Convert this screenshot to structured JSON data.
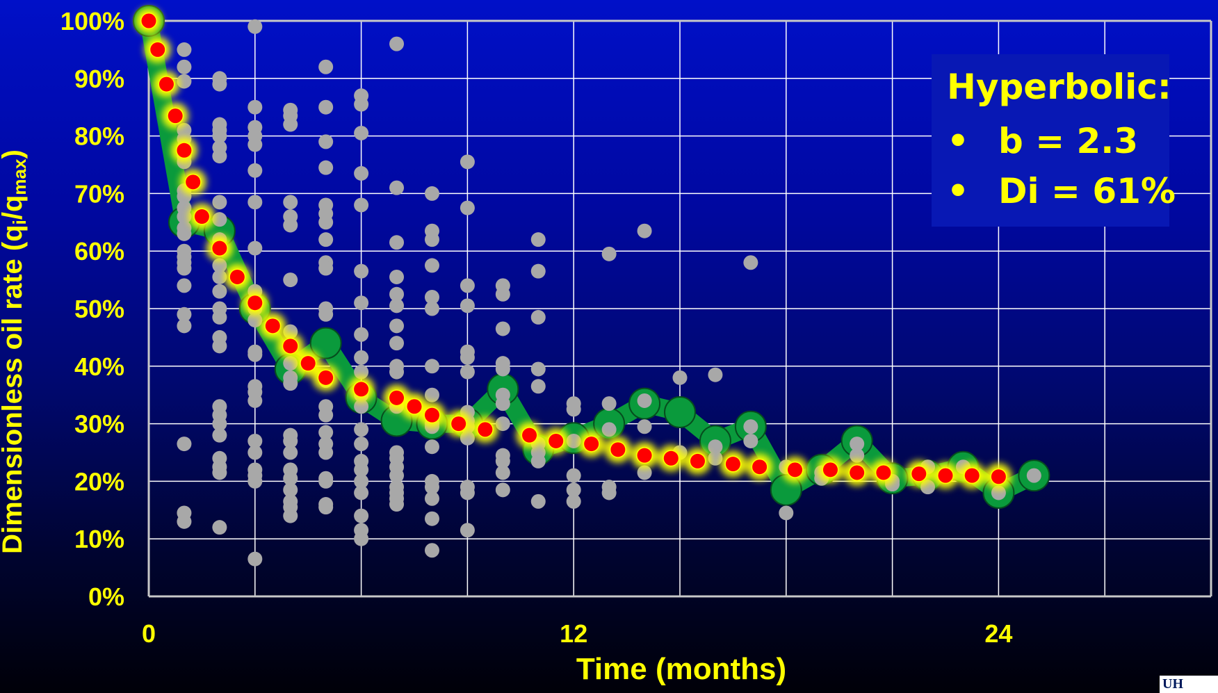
{
  "colors": {
    "grid": "#ffffff",
    "label": "#ffff00",
    "scatter": "#a8a8a8",
    "average": "#0a9a3c",
    "fit_glow": "#ffff00",
    "fit_dot": "#ff0000"
  },
  "annotation": {
    "title": "Hyperbolic:",
    "bullet": "•",
    "items": [
      "b = 2.3",
      "Di = 61%"
    ]
  },
  "logo": {
    "text": "UH"
  },
  "chart_data": {
    "type": "scatter",
    "title": "",
    "xlabel": "Time (months)",
    "ylabel": "Dimensionless oil rate (qi/qmax)",
    "ylabel_parts": {
      "main": "Dimensionless oil rate (q",
      "sub1": "i",
      "mid": "/q",
      "sub2": "max",
      "end": ")"
    },
    "xlim": [
      0,
      30
    ],
    "ylim": [
      0,
      1
    ],
    "xticks": [
      0,
      12,
      24
    ],
    "xtick_labels": [
      "0",
      "12",
      "24"
    ],
    "yticks": [
      0,
      0.1,
      0.2,
      0.3,
      0.4,
      0.5,
      0.6,
      0.7,
      0.8,
      0.9,
      1.0
    ],
    "ytick_labels": [
      "0%",
      "10%",
      "20%",
      "30%",
      "40%",
      "50%",
      "60%",
      "70%",
      "80%",
      "90%",
      "100%"
    ],
    "grid": true,
    "series": [
      {
        "kind": "scatter",
        "columns": [
          {
            "x": 0,
            "y": [
              1.0
            ]
          },
          {
            "x": 1,
            "y": [
              0.95,
              0.92,
              0.895,
              0.81,
              0.795,
              0.78,
              0.765,
              0.755,
              0.705,
              0.695,
              0.675,
              0.66,
              0.64,
              0.63,
              0.6,
              0.59,
              0.58,
              0.57,
              0.54,
              0.49,
              0.47,
              0.265,
              0.145,
              0.13
            ]
          },
          {
            "x": 2,
            "y": [
              0.9,
              0.89,
              0.82,
              0.81,
              0.8,
              0.78,
              0.765,
              0.685,
              0.655,
              0.62,
              0.575,
              0.555,
              0.53,
              0.5,
              0.485,
              0.45,
              0.435,
              0.33,
              0.315,
              0.3,
              0.28,
              0.24,
              0.225,
              0.215,
              0.12
            ]
          },
          {
            "x": 3,
            "y": [
              0.99,
              0.85,
              0.815,
              0.8,
              0.785,
              0.74,
              0.685,
              0.605,
              0.53,
              0.515,
              0.5,
              0.48,
              0.425,
              0.42,
              0.365,
              0.355,
              0.34,
              0.27,
              0.25,
              0.22,
              0.21,
              0.2,
              0.065
            ]
          },
          {
            "x": 4,
            "y": [
              0.845,
              0.835,
              0.82,
              0.685,
              0.66,
              0.645,
              0.55,
              0.46,
              0.405,
              0.38,
              0.37,
              0.28,
              0.27,
              0.25,
              0.22,
              0.205,
              0.185,
              0.165,
              0.155,
              0.14
            ]
          },
          {
            "x": 5,
            "y": [
              0.92,
              0.85,
              0.79,
              0.745,
              0.68,
              0.665,
              0.65,
              0.62,
              0.58,
              0.57,
              0.5,
              0.49,
              0.375,
              0.33,
              0.315,
              0.285,
              0.265,
              0.25,
              0.205,
              0.2,
              0.16,
              0.155
            ]
          },
          {
            "x": 6,
            "y": [
              0.87,
              0.855,
              0.805,
              0.735,
              0.68,
              0.565,
              0.51,
              0.455,
              0.415,
              0.39,
              0.35,
              0.33,
              0.29,
              0.265,
              0.235,
              0.22,
              0.2,
              0.18,
              0.14,
              0.115,
              0.1
            ]
          },
          {
            "x": 7,
            "y": [
              0.96,
              0.71,
              0.615,
              0.555,
              0.525,
              0.505,
              0.47,
              0.44,
              0.4,
              0.39,
              0.33,
              0.25,
              0.24,
              0.225,
              0.21,
              0.19,
              0.18,
              0.17,
              0.16
            ]
          },
          {
            "x": 8,
            "y": [
              0.7,
              0.635,
              0.62,
              0.575,
              0.52,
              0.5,
              0.4,
              0.35,
              0.3,
              0.295,
              0.26,
              0.2,
              0.19,
              0.17,
              0.135,
              0.08
            ]
          },
          {
            "x": 9,
            "y": [
              0.755,
              0.675,
              0.54,
              0.505,
              0.425,
              0.415,
              0.39,
              0.32,
              0.305,
              0.295,
              0.275,
              0.19,
              0.18,
              0.115
            ]
          },
          {
            "x": 10,
            "y": [
              0.54,
              0.525,
              0.465,
              0.405,
              0.395,
              0.35,
              0.335,
              0.3,
              0.245,
              0.235,
              0.215,
              0.185
            ]
          },
          {
            "x": 11,
            "y": [
              0.62,
              0.565,
              0.485,
              0.395,
              0.365,
              0.265,
              0.25,
              0.235,
              0.165
            ]
          },
          {
            "x": 12,
            "y": [
              0.335,
              0.325,
              0.27,
              0.21,
              0.185,
              0.165
            ]
          },
          {
            "x": 13,
            "y": [
              0.595,
              0.335,
              0.29,
              0.19,
              0.18
            ]
          },
          {
            "x": 14,
            "y": [
              0.635,
              0.34,
              0.295,
              0.215
            ]
          },
          {
            "x": 15,
            "y": [
              0.38,
              0.25
            ]
          },
          {
            "x": 16,
            "y": [
              0.385,
              0.26,
              0.24
            ]
          },
          {
            "x": 17,
            "y": [
              0.58,
              0.295,
              0.27
            ]
          },
          {
            "x": 18,
            "y": [
              0.225,
              0.145
            ]
          },
          {
            "x": 19,
            "y": [
              0.215,
              0.205
            ]
          },
          {
            "x": 20,
            "y": [
              0.265,
              0.245
            ]
          },
          {
            "x": 21,
            "y": [
              0.2,
              0.195
            ]
          },
          {
            "x": 22,
            "y": [
              0.225,
              0.19
            ]
          },
          {
            "x": 23,
            "y": [
              0.225
            ]
          },
          {
            "x": 24,
            "y": [
              0.18
            ]
          },
          {
            "x": 25,
            "y": [
              0.21
            ]
          }
        ]
      },
      {
        "kind": "average",
        "x": [
          0,
          1,
          2,
          3,
          4,
          5,
          6,
          7,
          8,
          9,
          10,
          11,
          12,
          13,
          14,
          15,
          16,
          17,
          18,
          19,
          20,
          21,
          22,
          23,
          24,
          25
        ],
        "y": [
          1.0,
          0.65,
          0.635,
          0.5,
          0.395,
          0.44,
          0.345,
          0.305,
          0.3,
          0.3,
          0.36,
          0.255,
          0.275,
          0.3,
          0.335,
          0.32,
          0.27,
          0.295,
          0.185,
          0.22,
          0.27,
          0.205,
          0.21,
          0.225,
          0.18,
          0.21
        ]
      },
      {
        "kind": "hyperbolic_fit",
        "x": [
          0,
          0.25,
          0.5,
          0.75,
          1,
          1.25,
          1.5,
          2,
          2.5,
          3,
          3.5,
          4,
          4.5,
          5,
          6,
          7,
          7.5,
          8,
          8.75,
          9.5,
          10.75,
          11.5,
          12.5,
          13.25,
          14,
          14.75,
          15.5,
          16.5,
          17.25,
          18.25,
          19.25,
          20,
          20.75,
          21.75,
          22.5,
          23.25,
          24
        ],
        "y": [
          1.0,
          0.95,
          0.89,
          0.835,
          0.775,
          0.72,
          0.66,
          0.605,
          0.555,
          0.51,
          0.47,
          0.435,
          0.405,
          0.38,
          0.36,
          0.345,
          0.33,
          0.315,
          0.3,
          0.29,
          0.28,
          0.27,
          0.265,
          0.255,
          0.245,
          0.24,
          0.235,
          0.23,
          0.225,
          0.22,
          0.22,
          0.215,
          0.215,
          0.213,
          0.21,
          0.21,
          0.208
        ]
      }
    ]
  }
}
